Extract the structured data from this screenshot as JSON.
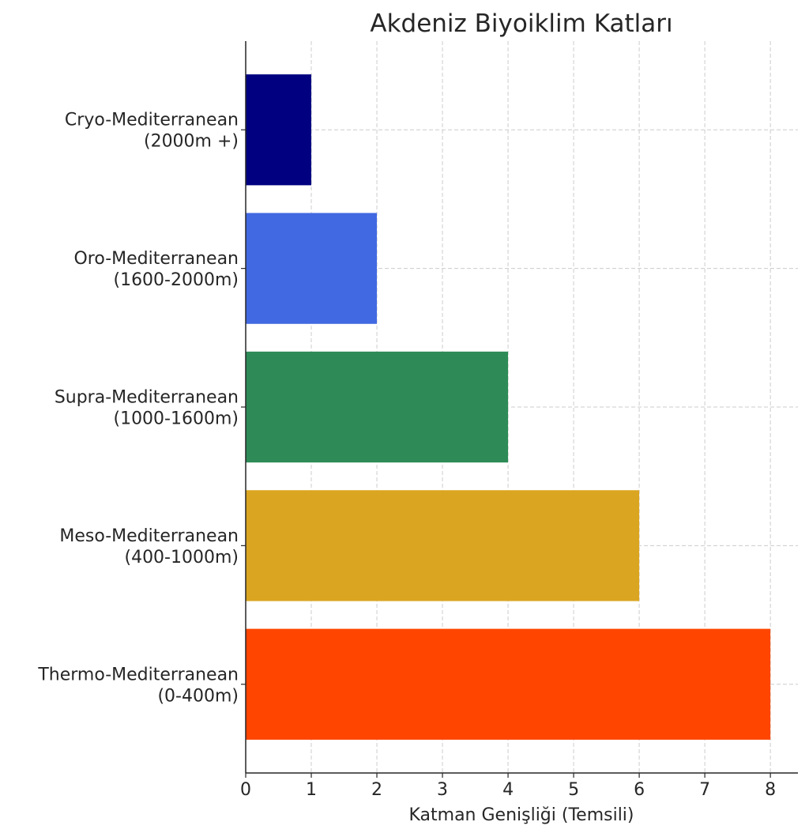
{
  "chart_data": {
    "type": "bar",
    "orientation": "horizontal",
    "title": "Akdeniz Biyoiklim Katları",
    "xlabel": "Katman Genişliği (Temsili)",
    "ylabel": "",
    "categories": [
      [
        "Thermo-Mediterranean",
        "(0-400m)"
      ],
      [
        "Meso-Mediterranean",
        "(400-1000m)"
      ],
      [
        "Supra-Mediterranean",
        "(1000-1600m)"
      ],
      [
        "Oro-Mediterranean",
        "(1600-2000m)"
      ],
      [
        "Cryo-Mediterranean",
        "(2000m +)"
      ]
    ],
    "values": [
      8,
      6,
      4,
      2,
      1
    ],
    "colors": [
      "#FF4500",
      "#DAA520",
      "#2E8B57",
      "#4169E1",
      "#000080"
    ],
    "xticks": [
      "0",
      "1",
      "2",
      "3",
      "4",
      "5",
      "6",
      "7",
      "8"
    ],
    "xlim": [
      0,
      8.42
    ],
    "grid": true
  }
}
